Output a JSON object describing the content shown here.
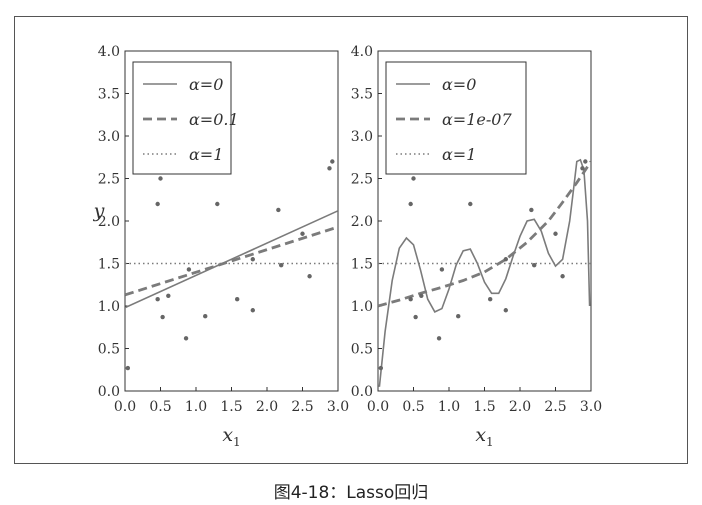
{
  "caption": "图4-18：Lasso回归",
  "chart_data": [
    {
      "type": "scatter",
      "xlabel": "x1",
      "ylabel": "y",
      "xlim": [
        0,
        3
      ],
      "ylim": [
        0,
        4
      ],
      "xticks": [
        "0.0",
        "0.5",
        "1.0",
        "1.5",
        "2.0",
        "2.5",
        "3.0"
      ],
      "yticks": [
        "0.0",
        "0.5",
        "1.0",
        "1.5",
        "2.0",
        "2.5",
        "3.0",
        "3.5",
        "4.0"
      ],
      "legend_position": "top-left",
      "legend": [
        {
          "label": "α=0",
          "style": "solid"
        },
        {
          "label": "α=0.1",
          "style": "dashed"
        },
        {
          "label": "α=1",
          "style": "dotted"
        }
      ],
      "points": [
        [
          0.04,
          0.27
        ],
        [
          0.46,
          2.2
        ],
        [
          0.5,
          2.5
        ],
        [
          0.46,
          1.08
        ],
        [
          0.53,
          0.87
        ],
        [
          0.61,
          1.12
        ],
        [
          0.86,
          0.62
        ],
        [
          0.9,
          1.43
        ],
        [
          1.13,
          0.88
        ],
        [
          1.3,
          2.2
        ],
        [
          1.58,
          1.08
        ],
        [
          1.8,
          0.95
        ],
        [
          1.8,
          1.55
        ],
        [
          2.16,
          2.13
        ],
        [
          2.2,
          1.48
        ],
        [
          2.5,
          1.85
        ],
        [
          2.6,
          1.35
        ],
        [
          2.88,
          2.62
        ],
        [
          2.92,
          2.7
        ]
      ],
      "series": [
        {
          "name": "α=0",
          "style": "solid",
          "x": [
            0,
            3
          ],
          "y": [
            0.98,
            2.12
          ]
        },
        {
          "name": "α=0.1",
          "style": "dashed",
          "x": [
            0,
            3
          ],
          "y": [
            1.13,
            1.93
          ]
        },
        {
          "name": "α=1",
          "style": "dotted",
          "x": [
            0,
            3
          ],
          "y": [
            1.5,
            1.5
          ]
        }
      ]
    },
    {
      "type": "scatter",
      "xlabel": "x1",
      "ylabel": "",
      "xlim": [
        0,
        3
      ],
      "ylim": [
        0,
        4
      ],
      "xticks": [
        "0.0",
        "0.5",
        "1.0",
        "1.5",
        "2.0",
        "2.5",
        "3.0"
      ],
      "yticks": [
        "0.0",
        "0.5",
        "1.0",
        "1.5",
        "2.0",
        "2.5",
        "3.0",
        "3.5",
        "4.0"
      ],
      "legend_position": "top-left",
      "legend": [
        {
          "label": "α=0",
          "style": "solid"
        },
        {
          "label": "α=1e-07",
          "style": "dashed"
        },
        {
          "label": "α=1",
          "style": "dotted"
        }
      ],
      "points": [
        [
          0.04,
          0.27
        ],
        [
          0.46,
          2.2
        ],
        [
          0.5,
          2.5
        ],
        [
          0.46,
          1.08
        ],
        [
          0.53,
          0.87
        ],
        [
          0.61,
          1.12
        ],
        [
          0.86,
          0.62
        ],
        [
          0.9,
          1.43
        ],
        [
          1.13,
          0.88
        ],
        [
          1.3,
          2.2
        ],
        [
          1.58,
          1.08
        ],
        [
          1.8,
          0.95
        ],
        [
          1.8,
          1.55
        ],
        [
          2.16,
          2.13
        ],
        [
          2.2,
          1.48
        ],
        [
          2.5,
          1.85
        ],
        [
          2.6,
          1.35
        ],
        [
          2.88,
          2.62
        ],
        [
          2.92,
          2.7
        ]
      ],
      "series": [
        {
          "name": "α=0",
          "style": "solid",
          "x": [
            0.02,
            0.1,
            0.2,
            0.3,
            0.4,
            0.5,
            0.6,
            0.7,
            0.8,
            0.9,
            1.0,
            1.1,
            1.2,
            1.3,
            1.4,
            1.5,
            1.6,
            1.7,
            1.8,
            1.9,
            2.0,
            2.1,
            2.2,
            2.3,
            2.4,
            2.5,
            2.6,
            2.7,
            2.75,
            2.8,
            2.85,
            2.9,
            2.95,
            2.98
          ],
          "y": [
            0.05,
            0.7,
            1.3,
            1.68,
            1.8,
            1.72,
            1.42,
            1.08,
            0.93,
            0.97,
            1.2,
            1.48,
            1.65,
            1.67,
            1.5,
            1.28,
            1.15,
            1.15,
            1.32,
            1.58,
            1.82,
            2.0,
            2.02,
            1.88,
            1.62,
            1.47,
            1.55,
            2.0,
            2.35,
            2.7,
            2.72,
            2.6,
            2.0,
            1.0
          ]
        },
        {
          "name": "α=1e-07",
          "style": "dashed",
          "x": [
            0,
            0.3,
            0.6,
            0.9,
            1.2,
            1.5,
            1.8,
            2.1,
            2.4,
            2.6,
            2.8,
            3.0
          ],
          "y": [
            1.0,
            1.07,
            1.15,
            1.22,
            1.3,
            1.4,
            1.55,
            1.75,
            2.0,
            2.22,
            2.45,
            2.7
          ]
        },
        {
          "name": "α=1",
          "style": "dotted",
          "x": [
            0,
            3
          ],
          "y": [
            1.5,
            1.5
          ]
        }
      ]
    }
  ]
}
